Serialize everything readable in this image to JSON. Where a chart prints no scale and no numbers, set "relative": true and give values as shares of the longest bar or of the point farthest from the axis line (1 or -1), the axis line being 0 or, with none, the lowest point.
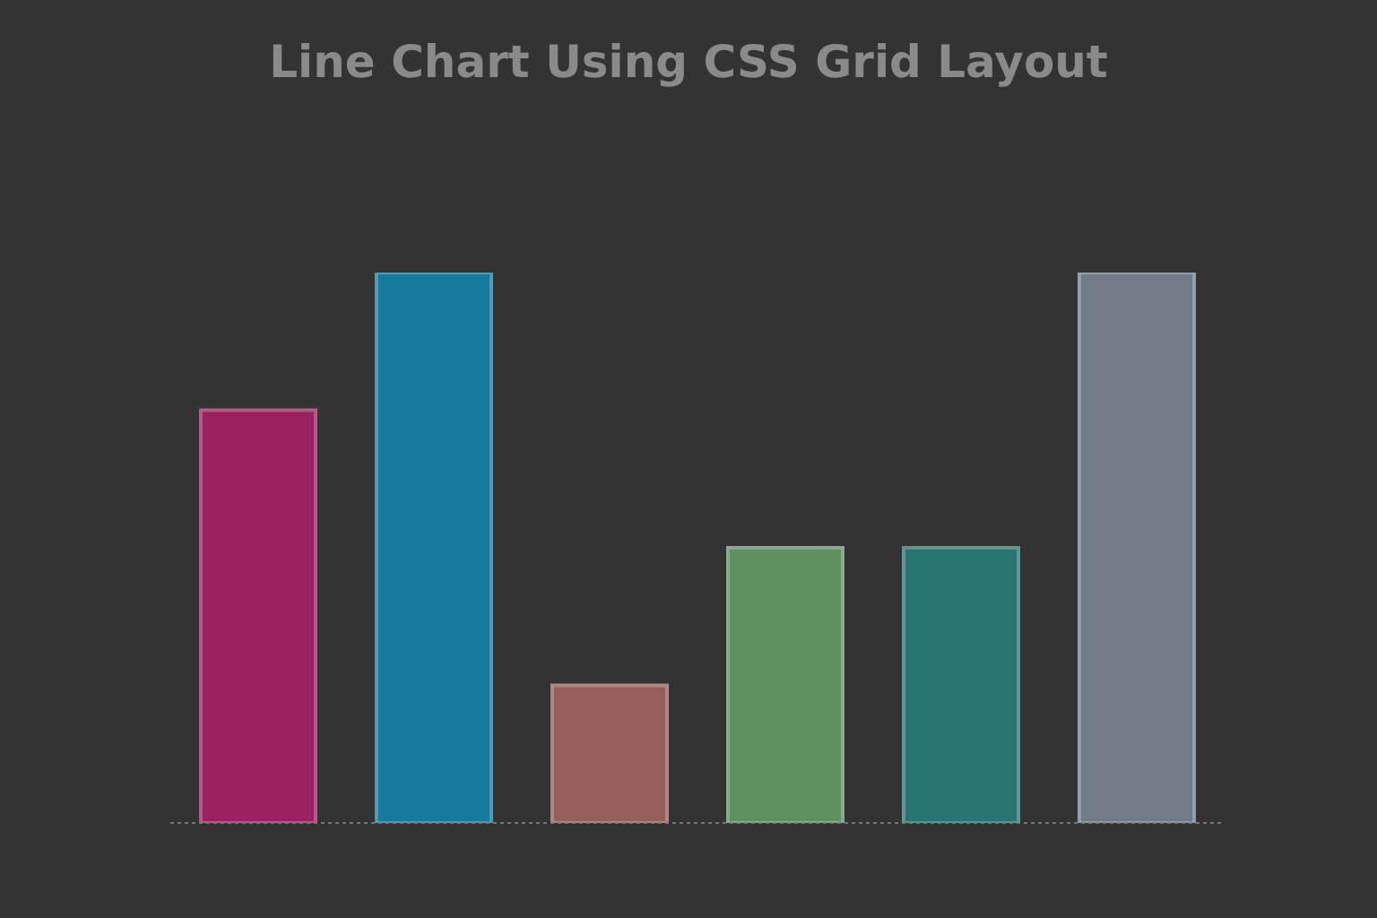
{
  "chart_data": {
    "type": "bar",
    "title": "Line Chart Using CSS Grid Layout",
    "categories": [
      null,
      null,
      null,
      null,
      null,
      null
    ],
    "values": [
      0.75,
      1,
      0.25,
      0.5,
      0.5,
      1
    ],
    "colors": [
      "#9c2160",
      "#177a9c",
      "#955f5c",
      "#5f9160",
      "#277470",
      "#717c88"
    ],
    "relative": true,
    "grid": false,
    "legend": false
  }
}
